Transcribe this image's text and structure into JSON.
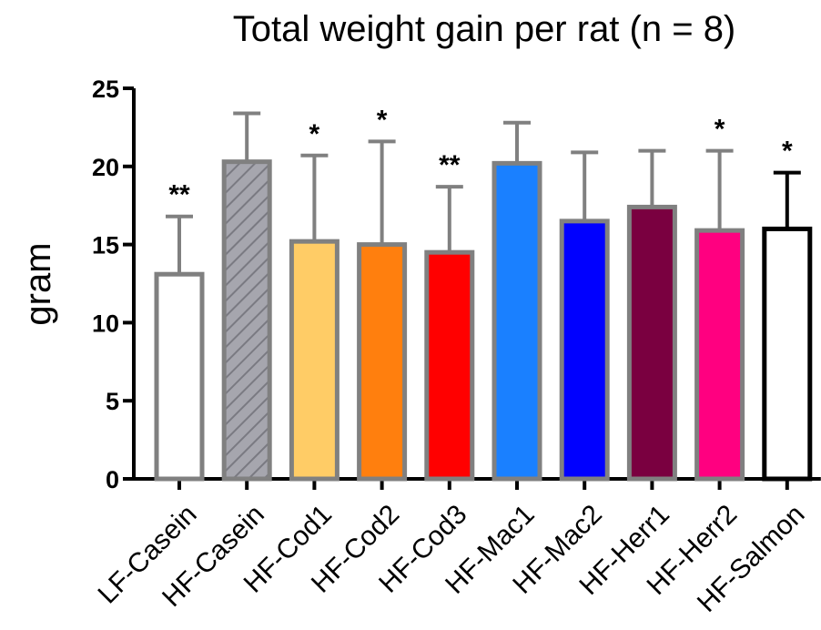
{
  "chart_data": {
    "type": "bar",
    "title": "Total weight gain per rat (n = 8)",
    "xlabel": "",
    "ylabel": "gram",
    "ylim": [
      0,
      25
    ],
    "yticks": [
      "0",
      "5",
      "10",
      "15",
      "20",
      "25"
    ],
    "categories": [
      "LF-Casein",
      "HF-Casein",
      "HF-Cod1",
      "HF-Cod2",
      "HF-Cod3",
      "HF-Mac1",
      "HF-Mac2",
      "HF-Herr1",
      "HF-Herr2",
      "HF-Salmon"
    ],
    "values": [
      13.1,
      20.3,
      15.2,
      15.0,
      14.5,
      20.2,
      16.5,
      17.4,
      15.9,
      16.0
    ],
    "error_upper": [
      16.8,
      23.4,
      20.7,
      21.6,
      18.7,
      22.8,
      20.9,
      21.0,
      21.0,
      19.6
    ],
    "significance": [
      "**",
      "",
      "*",
      "*",
      "**",
      "",
      "",
      "",
      "*",
      "*"
    ],
    "fill_colors": [
      "#ffffff",
      "#a6a6ae",
      "#ffcc66",
      "#ff7f0e",
      "#ff0000",
      "#1a80ff",
      "#0000ff",
      "#7a0040",
      "#ff0080",
      "#ffffff"
    ],
    "hatched": [
      false,
      true,
      false,
      false,
      false,
      false,
      false,
      false,
      false,
      false
    ],
    "border_colors": [
      "#808080",
      "#808080",
      "#808080",
      "#808080",
      "#808080",
      "#808080",
      "#808080",
      "#808080",
      "#808080",
      "#000000"
    ],
    "grid": false,
    "legend": "none"
  }
}
